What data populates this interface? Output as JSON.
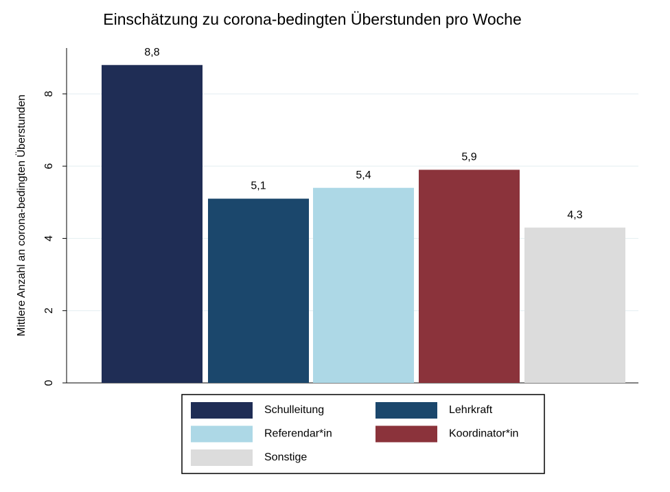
{
  "chart_data": {
    "type": "bar",
    "title": "Einschätzung zu corona-bedingten Überstunden pro Woche",
    "ylabel": "Mittlere Anzahl an corona-bedingten Überstunden",
    "ylim": [
      0,
      9.27
    ],
    "yticks": [
      0,
      2,
      4,
      6,
      8
    ],
    "grid": true,
    "series": [
      {
        "name": "Schulleitung",
        "color": "#1f2d55",
        "values": [
          8.8
        ],
        "value_labels": [
          "8,8"
        ]
      },
      {
        "name": "Lehrkraft",
        "color": "#1b476c",
        "values": [
          5.1
        ],
        "value_labels": [
          "5,1"
        ]
      },
      {
        "name": "Referendar*in",
        "color": "#add8e6",
        "values": [
          5.4
        ],
        "value_labels": [
          "5,4"
        ]
      },
      {
        "name": "Koordinator*in",
        "color": "#8b333b",
        "values": [
          5.9
        ],
        "value_labels": [
          "5,9"
        ]
      },
      {
        "name": "Sonstige",
        "color": "#dcdcdc",
        "values": [
          4.3
        ],
        "value_labels": [
          "4,3"
        ]
      }
    ]
  }
}
